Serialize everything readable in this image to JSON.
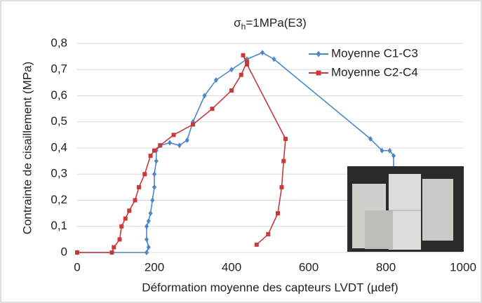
{
  "chart_data": {
    "type": "line",
    "title_symbol": "σ",
    "title_subscript": "h",
    "title_rest": "=1MPa(E3)",
    "x_label": "Déformation moyenne des capteurs LVDT (µdef)",
    "y_label": "Contrainte de cisaillement (MPa)",
    "xlim": [
      0,
      1000
    ],
    "xticks": [
      0,
      200,
      400,
      600,
      800,
      1000
    ],
    "ylim": [
      0,
      0.8
    ],
    "yticks": [
      0,
      {
        "value": 0.1,
        "label": "0,1"
      },
      {
        "value": 0.2,
        "label": "0,2"
      },
      {
        "value": 0.3,
        "label": "0,3"
      },
      {
        "value": 0.4,
        "label": "0,4"
      },
      {
        "value": 0.5,
        "label": "0,5"
      },
      {
        "value": 0.6,
        "label": "0,6"
      },
      {
        "value": 0.7,
        "label": "0,7"
      },
      {
        "value": 0.8,
        "label": "0,8"
      }
    ],
    "grid": true,
    "legend": "top right",
    "series": [
      {
        "name": "Moyenne C1-C3",
        "color": "#4a86c8",
        "marker": "diamond",
        "x": [
          0,
          180,
          185,
          180,
          180,
          185,
          190,
          195,
          200,
          200,
          205,
          205,
          215,
          240,
          265,
          285,
          300,
          330,
          360,
          400,
          440,
          480,
          510,
          760,
          790,
          810,
          820,
          820
        ],
        "values": [
          0,
          0,
          0.02,
          0.05,
          0.1,
          0.12,
          0.15,
          0.2,
          0.25,
          0.3,
          0.35,
          0.39,
          0.41,
          0.42,
          0.41,
          0.43,
          0.5,
          0.6,
          0.66,
          0.7,
          0.74,
          0.765,
          0.74,
          0.435,
          0.39,
          0.39,
          0.37,
          0.3
        ]
      },
      {
        "name": "Moyenne C2-C4",
        "color": "#c8393a",
        "marker": "square",
        "x": [
          0,
          90,
          95,
          110,
          115,
          125,
          135,
          150,
          160,
          175,
          190,
          200,
          215,
          250,
          300,
          350,
          400,
          425,
          440,
          430,
          440,
          540,
          535,
          530,
          520,
          495,
          465
        ],
        "values": [
          0,
          0,
          0.02,
          0.05,
          0.1,
          0.13,
          0.16,
          0.2,
          0.25,
          0.3,
          0.37,
          0.39,
          0.41,
          0.45,
          0.49,
          0.55,
          0.62,
          0.68,
          0.73,
          0.755,
          0.72,
          0.435,
          0.35,
          0.25,
          0.15,
          0.07,
          0.03
        ]
      }
    ]
  }
}
